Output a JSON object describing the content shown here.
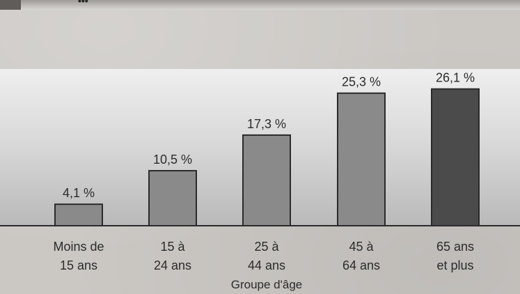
{
  "header": {
    "mark": "•••"
  },
  "chart_data": {
    "type": "bar",
    "categories": [
      [
        "Moins de",
        "15 ans"
      ],
      [
        "15 à",
        "24 ans"
      ],
      [
        "25 à",
        "44 ans"
      ],
      [
        "45 à",
        "64 ans"
      ],
      [
        "65 ans",
        "et plus"
      ]
    ],
    "values": [
      4.1,
      10.5,
      17.3,
      25.3,
      26.1
    ],
    "value_labels": [
      "4,1 %",
      "10,5 %",
      "17,3 %",
      "25,3 %",
      "26,1 %"
    ],
    "xlabel": "Groupe d'âge",
    "ylabel": "",
    "ylim": [
      0,
      32
    ],
    "grid": false,
    "colors": {
      "bar": "#8a8a8a",
      "bar_highlight": "#4b4b4b",
      "bar_stroke": "#2a2a2a",
      "axis": "#2a2a2a"
    },
    "highlight_index": 4
  }
}
